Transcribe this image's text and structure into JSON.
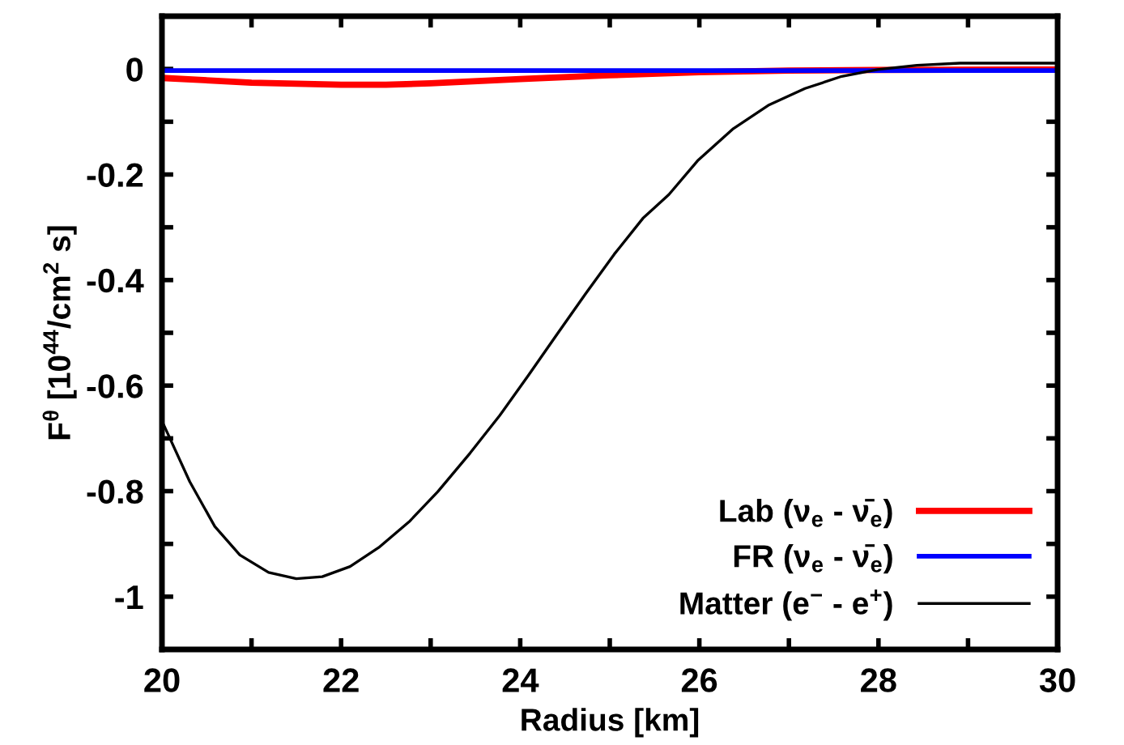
{
  "chart_data": {
    "type": "line",
    "xlabel": "Radius [km]",
    "ylabel": "F$^{θ}$ [10$^{44}$/cm$^{2}$ s]",
    "xlim": [
      20,
      30
    ],
    "ylim": [
      -1.1,
      0.1
    ],
    "xticks": [
      20,
      {
        "value": 21,
        "label": null
      },
      22,
      {
        "value": 23,
        "label": null
      },
      24,
      {
        "value": 25,
        "label": null
      },
      26,
      {
        "value": 27,
        "label": null
      },
      28,
      {
        "value": 29,
        "label": null
      },
      30
    ],
    "yticks": [
      -1,
      {
        "value": -0.9,
        "label": null
      },
      -0.8,
      {
        "value": -0.7,
        "label": null
      },
      -0.6,
      {
        "value": -0.5,
        "label": null
      },
      -0.4,
      {
        "value": -0.3,
        "label": null
      },
      -0.2,
      {
        "value": -0.1,
        "label": null
      },
      0
    ],
    "legend": "bottom right",
    "grid": false,
    "marker": "none",
    "line_style": "solid",
    "series": [
      {
        "name": "Lab (ν$_{e}$ - ν̄$_{e}$)",
        "color": "#ff0000",
        "x": [
          20,
          21,
          22,
          22.5,
          23,
          24,
          25,
          26,
          27,
          28,
          30
        ],
        "values": [
          -0.017,
          -0.026,
          -0.03,
          -0.03,
          -0.027,
          -0.019,
          -0.012,
          -0.006,
          -0.003,
          -0.002,
          -0.001
        ]
      },
      {
        "name": "FR (ν$_{e}$ - ν̄$_{e}$)",
        "color": "#0000ff",
        "x": [
          20,
          22,
          24,
          26,
          28,
          30
        ],
        "values": [
          -0.003,
          -0.003,
          -0.003,
          -0.003,
          -0.003,
          -0.003
        ]
      },
      {
        "name": "Matter (e$^{−}$ - e$^{+}$)",
        "color": "#000000",
        "x": [
          20,
          20.31,
          20.59,
          20.87,
          21.19,
          21.5,
          21.79,
          22.1,
          22.42,
          22.76,
          23.08,
          23.44,
          23.77,
          24.09,
          24.41,
          24.73,
          25.05,
          25.37,
          25.66,
          25.98,
          26.38,
          26.78,
          27.18,
          27.59,
          27.99,
          28.43,
          28.91,
          29.4,
          30
        ],
        "values": [
          -0.667,
          -0.782,
          -0.867,
          -0.921,
          -0.954,
          -0.966,
          -0.962,
          -0.943,
          -0.907,
          -0.858,
          -0.801,
          -0.728,
          -0.657,
          -0.581,
          -0.503,
          -0.426,
          -0.351,
          -0.283,
          -0.238,
          -0.174,
          -0.113,
          -0.068,
          -0.037,
          -0.014,
          -0.001,
          0.007,
          0.011,
          0.011,
          0.011
        ]
      }
    ]
  }
}
